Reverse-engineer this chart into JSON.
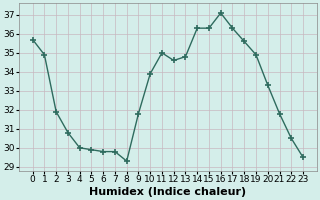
{
  "x": [
    0,
    1,
    2,
    3,
    4,
    5,
    6,
    7,
    8,
    9,
    10,
    11,
    12,
    13,
    14,
    15,
    16,
    17,
    18,
    19,
    20,
    21,
    22,
    23
  ],
  "y": [
    35.7,
    34.9,
    31.9,
    30.8,
    30.0,
    29.9,
    29.8,
    29.8,
    29.3,
    31.8,
    33.9,
    35.0,
    34.6,
    34.8,
    36.3,
    36.3,
    37.1,
    36.3,
    35.6,
    34.9,
    33.3,
    31.8,
    30.5,
    29.5
  ],
  "line_color": "#2e6b5e",
  "marker": "+",
  "markersize": 4,
  "markeredgewidth": 1.2,
  "linewidth": 1.0,
  "xlabel": "Humidex (Indice chaleur)",
  "xlabel_fontsize": 8,
  "bg_color": "#d4eeea",
  "grid_color": "#c8b8c0",
  "tick_color": "#000000",
  "ylim": [
    28.8,
    37.6
  ],
  "yticks": [
    29,
    30,
    31,
    32,
    33,
    34,
    35,
    36,
    37
  ],
  "xticks": [
    0,
    1,
    2,
    3,
    4,
    5,
    6,
    7,
    8,
    9,
    10,
    11,
    12,
    13,
    14,
    15,
    16,
    17,
    18,
    19,
    20,
    21,
    22,
    23
  ],
  "tick_fontsize": 6.5,
  "xlabel_fontsize_bold": true
}
